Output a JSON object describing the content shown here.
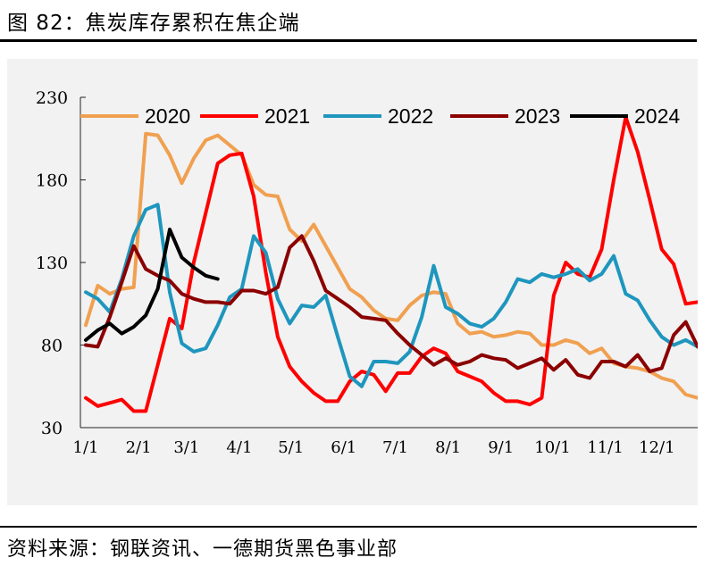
{
  "header": {
    "figure_title": "图 82：焦炭库存累积在焦企端"
  },
  "footer": {
    "source": "资料来源：钢联资讯、一德期货黑色事业部"
  },
  "chart_data": {
    "type": "line",
    "title": "",
    "xlabel": "",
    "ylabel": "",
    "ylim": [
      30,
      230
    ],
    "yticks": [
      30,
      80,
      130,
      180,
      230
    ],
    "x_tick_labels": [
      "1/1",
      "2/1",
      "3/1",
      "4/1",
      "5/1",
      "6/1",
      "7/1",
      "8/1",
      "9/1",
      "10/1",
      "11/1",
      "12/1"
    ],
    "x_week_range": [
      1,
      52
    ],
    "legend_position": "top",
    "grid": false,
    "series": [
      {
        "name": "2020",
        "color": "#f0a050",
        "weeks": [
          1,
          2,
          3,
          4,
          5,
          6,
          7,
          8,
          9,
          10,
          11,
          12,
          13,
          14,
          15,
          16,
          17,
          18,
          19,
          20,
          21,
          22,
          23,
          24,
          25,
          26,
          27,
          28,
          29,
          30,
          31,
          32,
          33,
          34,
          35,
          36,
          37,
          38,
          39,
          40,
          41,
          42,
          43,
          44,
          45,
          46,
          47,
          48,
          49,
          50,
          51,
          52
        ],
        "values": [
          92,
          116,
          111,
          114,
          115,
          208,
          207,
          195,
          178,
          193,
          204,
          207,
          201,
          195,
          177,
          171,
          170,
          150,
          143,
          153,
          140,
          127,
          114,
          109,
          101,
          96,
          95,
          104,
          110,
          112,
          111,
          93,
          87,
          88,
          85,
          86,
          88,
          87,
          80,
          80,
          83,
          81,
          75,
          78,
          69,
          67,
          66,
          64,
          60,
          58,
          50,
          48
        ]
      },
      {
        "name": "2021",
        "color": "#ff0000",
        "weeks": [
          1,
          2,
          3,
          4,
          5,
          6,
          7,
          8,
          9,
          10,
          11,
          12,
          13,
          14,
          15,
          16,
          17,
          18,
          19,
          20,
          21,
          22,
          23,
          24,
          25,
          26,
          27,
          28,
          29,
          30,
          31,
          32,
          33,
          34,
          35,
          36,
          37,
          38,
          39,
          40,
          41,
          42,
          43,
          44,
          45,
          46,
          47,
          48,
          49,
          50,
          51,
          52
        ],
        "values": [
          48,
          43,
          45,
          47,
          40,
          40,
          68,
          96,
          90,
          130,
          160,
          190,
          195,
          196,
          170,
          124,
          85,
          67,
          58,
          51,
          46,
          46,
          58,
          64,
          62,
          52,
          63,
          63,
          73,
          78,
          75,
          64,
          61,
          58,
          51,
          46,
          46,
          44,
          48,
          110,
          130,
          123,
          121,
          138,
          180,
          218,
          197,
          168,
          138,
          129,
          105,
          106
        ]
      },
      {
        "name": "2022",
        "color": "#1e96be",
        "weeks": [
          1,
          2,
          3,
          4,
          5,
          6,
          7,
          8,
          9,
          10,
          11,
          12,
          13,
          14,
          15,
          16,
          17,
          18,
          19,
          20,
          21,
          22,
          23,
          24,
          25,
          26,
          27,
          28,
          29,
          30,
          31,
          32,
          33,
          34,
          35,
          36,
          37,
          38,
          39,
          40,
          41,
          42,
          43,
          44,
          45,
          46,
          47,
          48,
          49,
          50,
          51,
          52
        ],
        "values": [
          112,
          108,
          100,
          120,
          146,
          162,
          165,
          112,
          81,
          76,
          78,
          92,
          109,
          114,
          146,
          136,
          108,
          93,
          104,
          103,
          110,
          85,
          61,
          55,
          70,
          70,
          69,
          76,
          97,
          128,
          103,
          99,
          93,
          91,
          96,
          106,
          120,
          118,
          123,
          121,
          123,
          126,
          119,
          123,
          134,
          111,
          107,
          95,
          85,
          80,
          83,
          79
        ]
      },
      {
        "name": "2023",
        "color": "#8b0000",
        "weeks": [
          1,
          2,
          3,
          4,
          5,
          6,
          7,
          8,
          9,
          10,
          11,
          12,
          13,
          14,
          15,
          16,
          17,
          18,
          19,
          20,
          21,
          22,
          23,
          24,
          25,
          26,
          27,
          28,
          29,
          30,
          31,
          32,
          33,
          34,
          35,
          36,
          37,
          38,
          39,
          40,
          41,
          42,
          43,
          44,
          45,
          46,
          47,
          48,
          49,
          50,
          51,
          52
        ],
        "values": [
          80,
          79,
          97,
          118,
          140,
          126,
          122,
          119,
          111,
          108,
          106,
          106,
          105,
          113,
          113,
          111,
          115,
          139,
          146,
          131,
          113,
          108,
          103,
          97,
          96,
          95,
          87,
          80,
          74,
          68,
          72,
          68,
          70,
          74,
          72,
          71,
          66,
          69,
          72,
          65,
          71,
          62,
          60,
          70,
          70,
          67,
          74,
          64,
          66,
          86,
          94,
          79
        ]
      },
      {
        "name": "2024",
        "color": "#000000",
        "weeks": [
          1,
          2,
          3,
          4,
          5,
          6,
          7,
          8,
          9,
          10,
          11,
          12
        ],
        "values": [
          83,
          89,
          93,
          87,
          91,
          98,
          114,
          150,
          133,
          127,
          122,
          120
        ]
      }
    ]
  }
}
